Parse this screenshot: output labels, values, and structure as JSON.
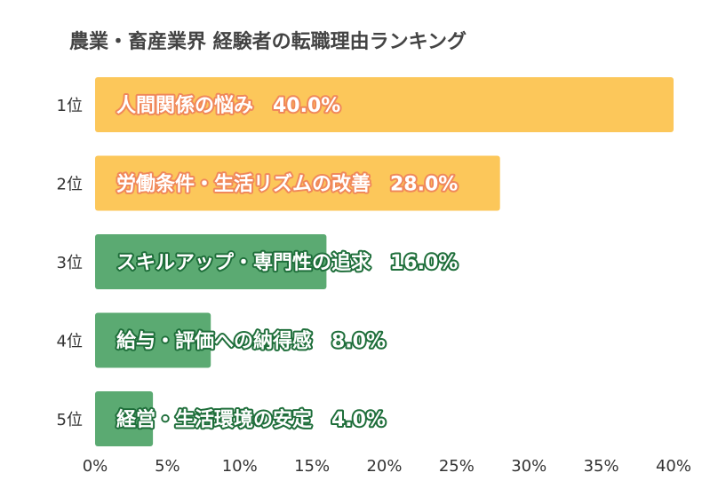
{
  "chart_data": {
    "type": "bar",
    "orientation": "horizontal",
    "title": "農業・畜産業界 経験者の転職理由ランキング",
    "categories": [
      "1位",
      "2位",
      "3位",
      "4位",
      "5位"
    ],
    "bar_labels": [
      "人間関係の悩み　40.0%",
      "労働条件・生活リズムの改善　28.0%",
      "スキルアップ・専門性の追求　16.0%",
      "給与・評価への納得感　8.0%",
      "経営・生活環境の安定　4.0%"
    ],
    "values": [
      40.0,
      28.0,
      16.0,
      8.0,
      4.0
    ],
    "bar_colors": [
      "#FCC75A",
      "#FCC75A",
      "#5BAA72",
      "#5BAA72",
      "#5BAA72"
    ],
    "label_outline_colors": [
      "#F0885A",
      "#F0885A",
      "#1E6E3A",
      "#1E6E3A",
      "#1E6E3A"
    ],
    "xlim": [
      0,
      40
    ],
    "xticks": [
      "0%",
      "5%",
      "10%",
      "15%",
      "20%",
      "25%",
      "30%",
      "35%",
      "40%"
    ],
    "grid": false,
    "legend": "none"
  }
}
